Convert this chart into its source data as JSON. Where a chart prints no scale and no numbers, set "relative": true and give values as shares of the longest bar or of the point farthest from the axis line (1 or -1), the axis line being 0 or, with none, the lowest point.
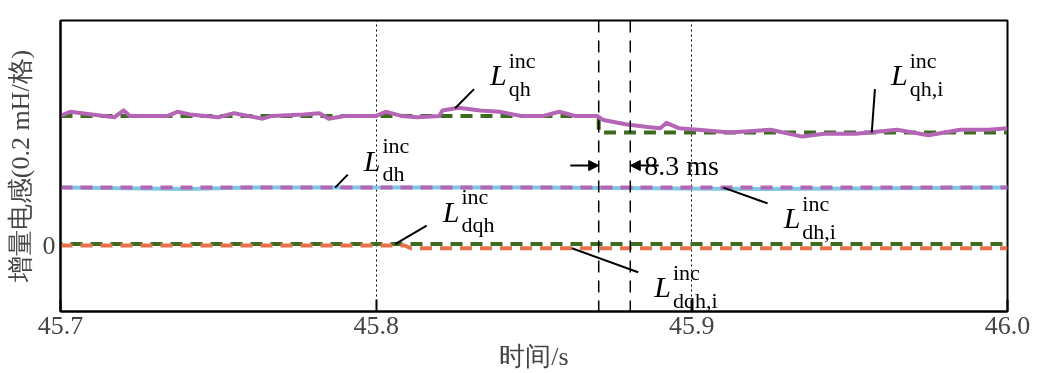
{
  "chart_data": {
    "type": "line",
    "xlabel": "时间/s",
    "ylabel": "增量电感(0.2 mH/格)",
    "xlim": [
      45.7,
      46.0
    ],
    "xticks": [
      {
        "value": 45.7,
        "label": "45.7"
      },
      {
        "value": 45.8,
        "label": "45.8"
      },
      {
        "value": 45.9,
        "label": "45.9"
      },
      {
        "value": 46.0,
        "label": "46.0"
      }
    ],
    "relative": true,
    "grid": "x",
    "series": [
      {
        "name": "L$^{inc}$$_{qh}$",
        "color": "#b565b5",
        "line_style": "solid",
        "x": [
          45.7,
          45.703,
          45.717,
          45.72,
          45.722,
          45.734,
          45.737,
          45.741,
          45.75,
          45.755,
          45.764,
          45.767,
          45.777,
          45.782,
          45.785,
          45.79,
          45.795,
          45.8,
          45.803,
          45.808,
          45.813,
          45.82,
          45.821,
          45.826,
          45.833,
          45.839,
          45.846,
          45.853,
          45.858,
          45.863,
          45.87,
          45.872,
          45.879,
          45.886,
          45.89,
          45.892,
          45.896,
          45.902,
          45.912,
          45.925,
          45.935,
          45.942,
          45.952,
          45.965,
          45.975,
          45.985,
          45.994,
          46.0
        ],
        "values": [
          0.94,
          0.97,
          0.93,
          0.98,
          0.94,
          0.94,
          0.97,
          0.95,
          0.93,
          0.96,
          0.92,
          0.94,
          0.95,
          0.96,
          0.92,
          0.94,
          0.94,
          0.94,
          0.97,
          0.94,
          0.93,
          0.94,
          0.98,
          1.0,
          0.98,
          0.97,
          0.94,
          0.94,
          0.97,
          0.94,
          0.94,
          0.91,
          0.88,
          0.86,
          0.85,
          0.89,
          0.85,
          0.84,
          0.82,
          0.84,
          0.79,
          0.81,
          0.81,
          0.84,
          0.8,
          0.84,
          0.84,
          0.85
        ]
      },
      {
        "name": "L$^{inc}$$_{qh,i}$",
        "color": "#3d6b1f",
        "line_style": "dashed",
        "x": [
          45.7,
          45.8705,
          45.8705,
          46.0
        ],
        "values": [
          0.94,
          0.94,
          0.82,
          0.82
        ]
      },
      {
        "name": "L$^{inc}$$_{dh}$",
        "color": "#7ec8e3",
        "line_style": "solid",
        "x": [
          45.7,
          45.74,
          45.76,
          45.79,
          45.8,
          45.85,
          45.92,
          46.0
        ],
        "values": [
          0.42,
          0.41,
          0.42,
          0.42,
          0.42,
          0.42,
          0.41,
          0.42
        ]
      },
      {
        "name": "L$^{inc}$$_{dh,i}$",
        "color": "#b565b5",
        "line_style": "dashed",
        "x": [
          45.7,
          46.0
        ],
        "values": [
          0.42,
          0.42
        ]
      },
      {
        "name": "L$^{inc}$$_{dqh}$",
        "color": "#3d6b1f",
        "line_style": "dashed",
        "x": [
          45.7,
          46.0
        ],
        "values": [
          0.01,
          0.01
        ]
      },
      {
        "name": "L$^{inc}$$_{dqh,i}$",
        "color": "#e8704a",
        "line_style": "dashed",
        "x": [
          45.7,
          45.809,
          45.811,
          46.0
        ],
        "values": [
          0.0,
          0.0,
          -0.02,
          -0.02
        ]
      }
    ],
    "ref_lines": [
      {
        "axis": "x",
        "value": 45.8705,
        "label": null,
        "color": "#000000",
        "line_style": "dashed"
      },
      {
        "axis": "x",
        "value": 45.8805,
        "label": null,
        "color": "#000000",
        "line_style": "dashed"
      }
    ],
    "annotations": [
      {
        "text": "8.3 ms",
        "x": 45.8805,
        "y": 0.58
      },
      "0"
    ]
  }
}
